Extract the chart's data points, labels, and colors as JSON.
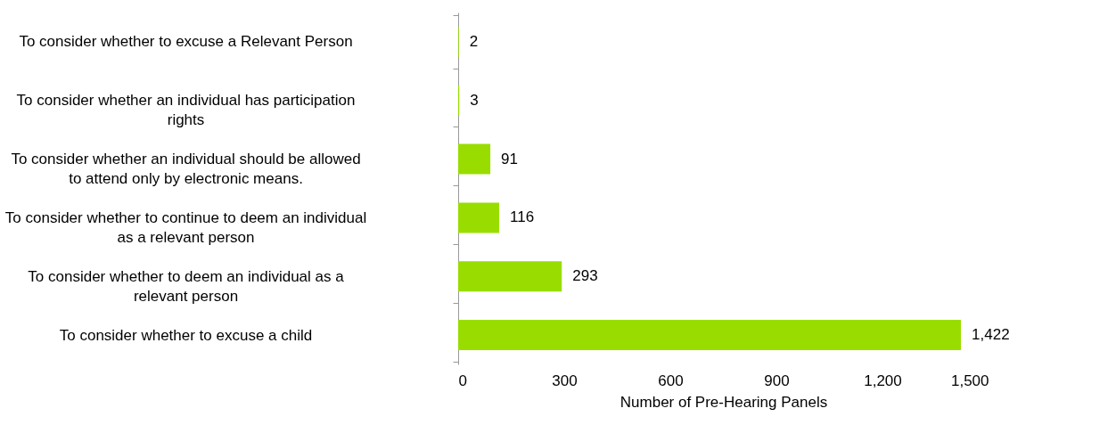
{
  "chart_data": {
    "type": "bar",
    "orientation": "horizontal",
    "xlabel": "Number of Pre-Hearing Panels",
    "categories": [
      "To consider whether to excuse a Relevant Person",
      "To consider whether an individual has participation rights",
      "To consider whether an individual should be allowed to attend only by electronic means.",
      "To consider whether to continue to deem an individual as a relevant person",
      "To consider whether to deem an individual as a relevant person",
      "To consider whether to excuse a child"
    ],
    "values": [
      2,
      3,
      91,
      116,
      293,
      1422
    ],
    "value_labels": [
      "2",
      "3",
      "91",
      "116",
      "293",
      "1,422"
    ],
    "color": "#99dd00",
    "xlim": [
      0,
      1500
    ],
    "xticks": [
      0,
      300,
      600,
      900,
      {
        "value": 1200,
        "label": "1,200"
      },
      {
        "value": 1500,
        "label": "1,500"
      }
    ],
    "grid": false
  }
}
